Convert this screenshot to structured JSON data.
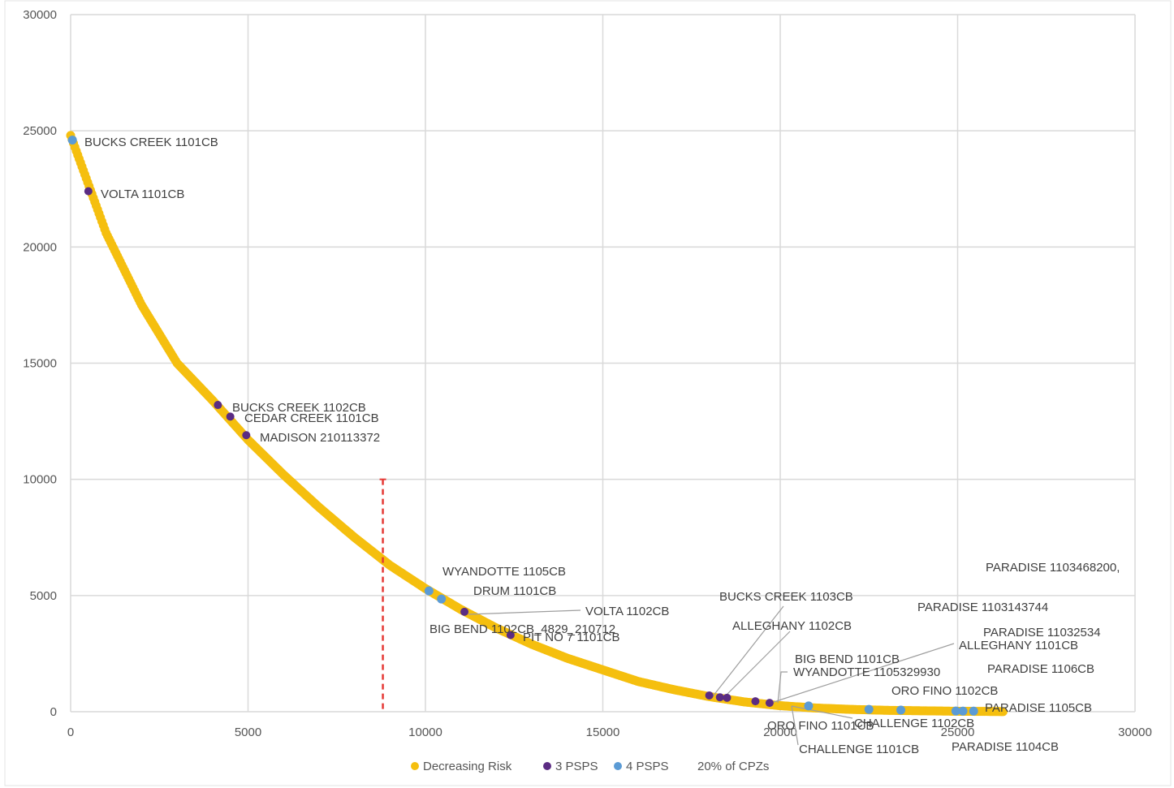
{
  "chart_data": {
    "type": "scatter",
    "xlim": [
      0,
      30000
    ],
    "ylim": [
      0,
      30000
    ],
    "x_ticks": [
      "0",
      "5000",
      "10000",
      "15000",
      "20000",
      "25000",
      "30000"
    ],
    "y_ticks": [
      "0",
      "5000",
      "10000",
      "15000",
      "20000",
      "25000",
      "30000"
    ],
    "grid": true,
    "legend_position": "bottom",
    "legend": [
      "Decreasing Risk",
      "3 PSPS",
      "4 PSPS",
      "20% of CPZs"
    ],
    "colors": {
      "decreasing": "#F5BF0F",
      "psps3": "#5B2C83",
      "psps4": "#5B9BD5",
      "cpz": "#E53935",
      "grid": "#D9D9D9"
    },
    "curve": {
      "name": "Decreasing Risk",
      "x": [
        0,
        1000,
        2000,
        3000,
        4000,
        5000,
        6000,
        7000,
        8000,
        9000,
        10000,
        11000,
        12000,
        13000,
        14000,
        15000,
        16000,
        17000,
        18000,
        19000,
        20000,
        21000,
        22000,
        23000,
        24000,
        25000,
        26000,
        26300
      ],
      "y": [
        24800,
        20600,
        17500,
        15000,
        13400,
        11700,
        10200,
        8800,
        7500,
        6300,
        5300,
        4400,
        3600,
        2900,
        2300,
        1800,
        1300,
        950,
        650,
        420,
        260,
        160,
        100,
        60,
        40,
        20,
        10,
        5
      ]
    },
    "cpz_line": {
      "name": "20% of CPZs",
      "x": 8800,
      "y_range": [
        0,
        10000
      ]
    },
    "psps3": {
      "name": "3 PSPS",
      "points": [
        [
          500,
          22400
        ],
        [
          4150,
          13200
        ],
        [
          4500,
          12700
        ],
        [
          4950,
          11900
        ],
        [
          11100,
          4300
        ],
        [
          12400,
          3300
        ],
        [
          18000,
          700
        ],
        [
          18300,
          620
        ],
        [
          18500,
          600
        ],
        [
          19300,
          450
        ],
        [
          19700,
          380
        ]
      ]
    },
    "psps4": {
      "name": "4 PSPS",
      "points": [
        [
          50,
          24600
        ],
        [
          10100,
          5200
        ],
        [
          10450,
          4850
        ],
        [
          20800,
          250
        ],
        [
          22500,
          100
        ],
        [
          23400,
          70
        ],
        [
          24950,
          30
        ],
        [
          25150,
          28
        ],
        [
          25450,
          25
        ]
      ]
    },
    "annotations": [
      "BUCKS CREEK 1101CB",
      "VOLTA 1101CB",
      "BUCKS CREEK 1102CB",
      "CEDAR CREEK 1101CB",
      "MADISON 210113372",
      "WYANDOTTE 1105CB",
      "DRUM 1101CB",
      "VOLTA 1102CB",
      "BIG BEND 1102CB_4829_210712",
      "PIT NO 7 1101CB",
      "BUCKS CREEK 1103CB",
      "ALLEGHANY 1102CB",
      "BIG BEND 1101CB",
      "WYANDOTTE 1105329930",
      "ORO FINO 1101CB",
      "CHALLENGE 1101CB",
      "CHALLENGE 1102CB",
      "ORO FINO 1102CB",
      "ALLEGHANY 1101CB",
      "PARADISE 1103468200,",
      "PARADISE 1103143744",
      "PARADISE 11032534",
      "PARADISE 1106CB",
      "PARADISE 1105CB",
      "PARADISE 1104CB"
    ]
  }
}
